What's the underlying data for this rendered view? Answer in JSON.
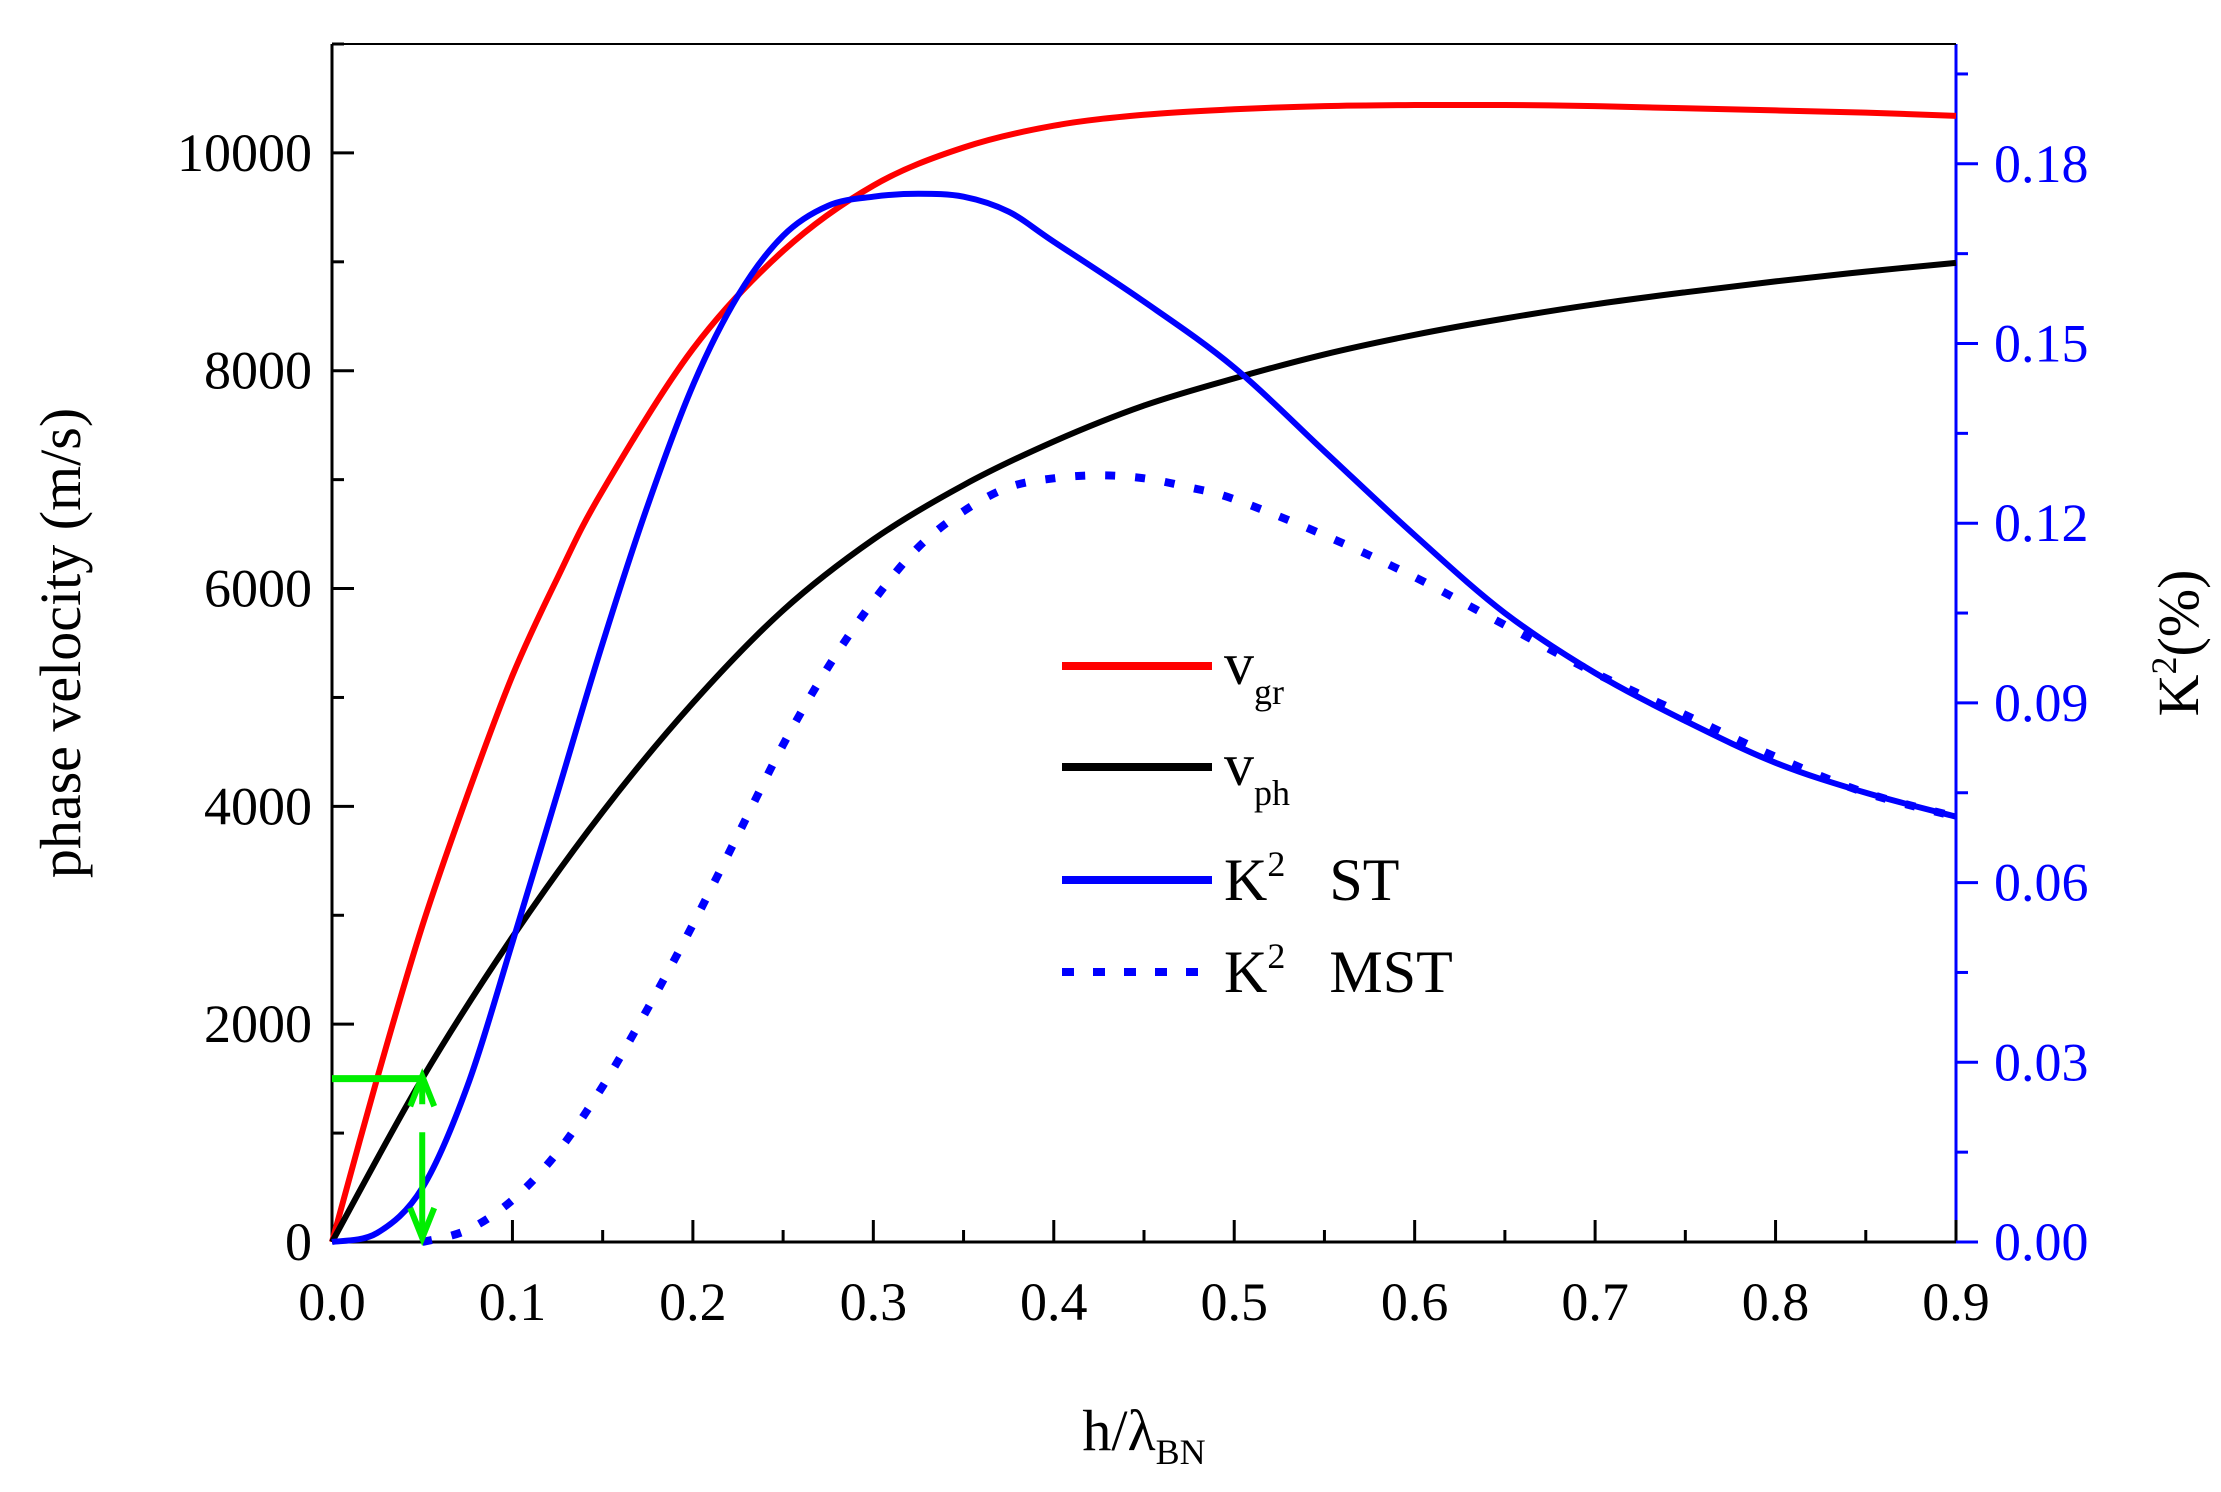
{
  "chart_data": {
    "type": "line",
    "xlabel": {
      "main": "h/λ",
      "sub": "BN"
    },
    "ylabel_left": "phase velocity (m/s)",
    "ylabel_right": {
      "main": "K",
      "sup": "2",
      "rest": "(%)"
    },
    "xlim": [
      0,
      0.9
    ],
    "ylim_left": [
      0,
      11000
    ],
    "ylim_right": [
      0,
      0.2
    ],
    "x_ticks": [
      0.0,
      0.1,
      0.2,
      0.3,
      0.4,
      0.5,
      0.6,
      0.7,
      0.8,
      0.9
    ],
    "x_tick_labels": [
      "0.0",
      "0.1",
      "0.2",
      "0.3",
      "0.4",
      "0.5",
      "0.6",
      "0.7",
      "0.8",
      "0.9"
    ],
    "y_left_ticks": [
      0,
      2000,
      4000,
      6000,
      8000,
      10000
    ],
    "y_left_tick_labels": [
      "0",
      "2000",
      "4000",
      "6000",
      "8000",
      "10000"
    ],
    "y_right_ticks": [
      0.0,
      0.03,
      0.06,
      0.09,
      0.12,
      0.15,
      0.18
    ],
    "y_right_tick_labels": [
      "0.00",
      "0.03",
      "0.06",
      "0.09",
      "0.12",
      "0.15",
      "0.18"
    ],
    "series": [
      {
        "name": "v_gr",
        "label_main": "v",
        "label_sub": "gr",
        "axis": "left",
        "color": "#ff0000",
        "style": "solid",
        "x": [
          0,
          0.025,
          0.05,
          0.075,
          0.1,
          0.125,
          0.15,
          0.2,
          0.25,
          0.3,
          0.35,
          0.4,
          0.45,
          0.5,
          0.55,
          0.6,
          0.65,
          0.7,
          0.75,
          0.8,
          0.85,
          0.9
        ],
        "y": [
          0,
          1500,
          2900,
          4100,
          5200,
          6100,
          6900,
          8200,
          9100,
          9700,
          10050,
          10250,
          10350,
          10400,
          10430,
          10440,
          10440,
          10430,
          10410,
          10390,
          10370,
          10340
        ]
      },
      {
        "name": "v_ph",
        "label_main": "v",
        "label_sub": "ph",
        "axis": "left",
        "color": "#000000",
        "style": "solid",
        "x": [
          0,
          0.05,
          0.1,
          0.15,
          0.2,
          0.25,
          0.3,
          0.35,
          0.4,
          0.45,
          0.5,
          0.55,
          0.6,
          0.65,
          0.7,
          0.75,
          0.8,
          0.85,
          0.9
        ],
        "y": [
          0,
          1500,
          2800,
          3950,
          4950,
          5800,
          6450,
          6950,
          7350,
          7680,
          7930,
          8150,
          8330,
          8480,
          8610,
          8720,
          8820,
          8910,
          8990
        ]
      },
      {
        "name": "K2 ST",
        "label_main": "K",
        "label_sup": "2",
        "label_rest": "ST",
        "axis": "right",
        "color": "#0000ff",
        "style": "solid",
        "x": [
          0,
          0.025,
          0.05,
          0.075,
          0.1,
          0.125,
          0.15,
          0.175,
          0.2,
          0.225,
          0.25,
          0.275,
          0.3,
          0.325,
          0.35,
          0.375,
          0.4,
          0.45,
          0.5,
          0.55,
          0.6,
          0.65,
          0.7,
          0.75,
          0.8,
          0.85,
          0.9
        ],
        "y": [
          0,
          0.0015,
          0.009,
          0.026,
          0.05,
          0.075,
          0.1,
          0.123,
          0.143,
          0.158,
          0.168,
          0.173,
          0.1745,
          0.175,
          0.1745,
          0.172,
          0.167,
          0.157,
          0.146,
          0.132,
          0.118,
          0.105,
          0.095,
          0.087,
          0.08,
          0.075,
          0.071
        ]
      },
      {
        "name": "K2 MST",
        "label_main": "K",
        "label_sup": "2",
        "label_rest": "MST",
        "axis": "right",
        "color": "#0000ff",
        "style": "dotted",
        "x": [
          0.05,
          0.075,
          0.1,
          0.125,
          0.15,
          0.175,
          0.2,
          0.225,
          0.25,
          0.275,
          0.3,
          0.325,
          0.35,
          0.375,
          0.4,
          0.425,
          0.45,
          0.475,
          0.5,
          0.55,
          0.6,
          0.65,
          0.7,
          0.75,
          0.8,
          0.85,
          0.9
        ],
        "y": [
          0,
          0.002,
          0.007,
          0.015,
          0.026,
          0.039,
          0.053,
          0.068,
          0.083,
          0.096,
          0.107,
          0.116,
          0.122,
          0.126,
          0.1275,
          0.128,
          0.1275,
          0.126,
          0.124,
          0.118,
          0.111,
          0.103,
          0.095,
          0.088,
          0.081,
          0.075,
          0.071
        ]
      }
    ],
    "annotation": {
      "type": "green-arrows",
      "color": "#00ee00",
      "description_values": {
        "x": 0.05,
        "y_left": 1500,
        "y_right_top": 0.025,
        "y_right_bottom": 0.0
      }
    },
    "legend_position": "center"
  }
}
